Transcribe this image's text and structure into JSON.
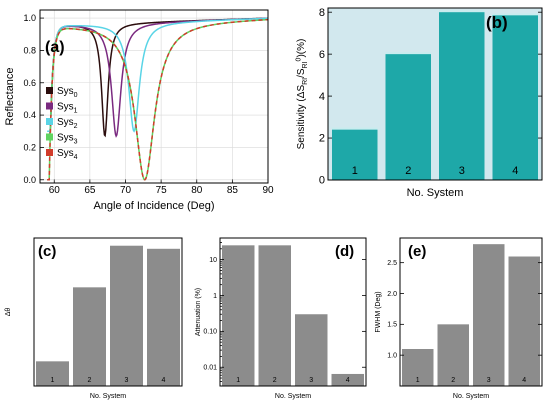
{
  "chart_data": [
    {
      "panel": "(a)",
      "type": "line",
      "title": "",
      "xlabel": "Angle of Incidence (Deg)",
      "ylabel": "Reflectance",
      "xlim": [
        58,
        90
      ],
      "ylim": [
        -0.02,
        1.05
      ],
      "xticks": [
        "60",
        "65",
        "70",
        "75",
        "80",
        "85",
        "90"
      ],
      "yticks": [
        "0.0",
        "0.2",
        "0.4",
        "0.6",
        "0.8",
        "1.0"
      ],
      "legend_position": "bottom-left",
      "grid": true,
      "series": [
        {
          "name": "Sys",
          "sub": "0",
          "color": "#2b0d0d",
          "dip": 67.1,
          "min": 0.27,
          "width": 0.55,
          "dash": ""
        },
        {
          "name": "Sys",
          "sub": "1",
          "color": "#7a2a80",
          "dip": 68.7,
          "min": 0.27,
          "width": 0.8,
          "dash": ""
        },
        {
          "name": "Sys",
          "sub": "2",
          "color": "#59d4e6",
          "dip": 71.2,
          "min": 0.3,
          "width": 0.9,
          "dash": ""
        },
        {
          "name": "Sys",
          "sub": "3",
          "color": "#5fd35f",
          "dip": 72.7,
          "min": 0.0,
          "width": 1.7,
          "dash": ""
        },
        {
          "name": "Sys",
          "sub": "4",
          "color": "#d13b2a",
          "dip": 72.7,
          "min": 0.0,
          "width": 1.7,
          "dash": "4,3"
        }
      ]
    },
    {
      "panel": "(b)",
      "type": "bar",
      "xlabel": "No. System",
      "ylabel": "Sensitivity (ΔS_RI/S_RI^0)(%)",
      "categories": [
        "1",
        "2",
        "3",
        "4"
      ],
      "values": [
        2.4,
        6.0,
        8.0,
        7.85
      ],
      "ylim": [
        0,
        8.2
      ],
      "yticks": [
        "0",
        "2",
        "4",
        "6",
        "8"
      ],
      "bar_color": "#1ea8a8",
      "bg_color": "#d2e8ee"
    },
    {
      "panel": "(c)",
      "type": "bar",
      "xlabel": "No. System",
      "ylabel": "Δθ",
      "categories": [
        "1",
        "2",
        "3",
        "4"
      ],
      "values": [
        1.6,
        4.0,
        5.35,
        5.25
      ],
      "ylim": [
        0.8,
        5.6
      ],
      "yticks": [],
      "bar_color": "#8c8c8c"
    },
    {
      "panel": "(d)",
      "type": "bar",
      "xlabel": "No. System",
      "ylabel": "Attenuation (%)",
      "categories": [
        "1",
        "2",
        "3",
        "4"
      ],
      "values": [
        25,
        25,
        0.3,
        0.0065
      ],
      "ylim": [
        0.003,
        40
      ],
      "log": true,
      "yticks": [
        "10",
        "1",
        "0.10",
        "0.01"
      ],
      "bar_color": "#8c8c8c"
    },
    {
      "panel": "(e)",
      "type": "bar",
      "xlabel": "No. System",
      "ylabel": "FWHM (Deg)",
      "categories": [
        "1",
        "2",
        "3",
        "4"
      ],
      "values": [
        1.1,
        1.5,
        2.8,
        2.6
      ],
      "ylim": [
        0.5,
        2.9
      ],
      "yticks": [
        "1.0",
        "1.5",
        "2.0",
        "2.5"
      ],
      "bar_color": "#8c8c8c"
    }
  ]
}
